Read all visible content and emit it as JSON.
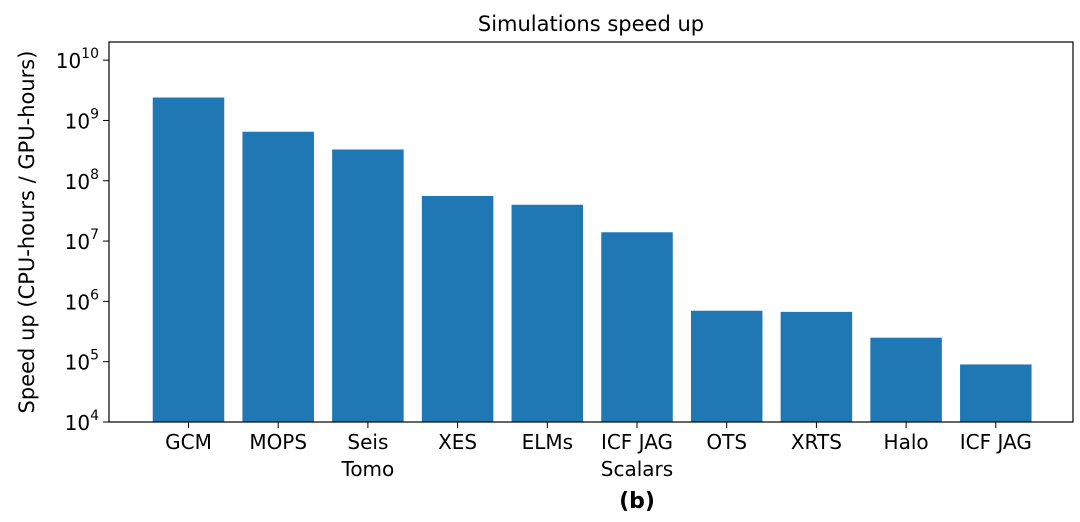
{
  "chart_data": {
    "type": "bar",
    "title": "Simulations speed up",
    "xlabel": "",
    "ylabel": "Speed up (CPU-hours / GPU-hours)",
    "yscale": "log",
    "ylim": [
      10000,
      20000000000
    ],
    "yticks": [
      {
        "value": 10000,
        "base": "10",
        "exp": "4"
      },
      {
        "value": 100000,
        "base": "10",
        "exp": "5"
      },
      {
        "value": 1000000,
        "base": "10",
        "exp": "6"
      },
      {
        "value": 10000000,
        "base": "10",
        "exp": "7"
      },
      {
        "value": 100000000,
        "base": "10",
        "exp": "8"
      },
      {
        "value": 1000000000,
        "base": "10",
        "exp": "9"
      },
      {
        "value": 10000000000,
        "base": "10",
        "exp": "10"
      }
    ],
    "categories": [
      [
        "GCM"
      ],
      [
        "MOPS"
      ],
      [
        "Seis",
        "Tomo"
      ],
      [
        "XES"
      ],
      [
        "ELMs"
      ],
      [
        "ICF JAG",
        "Scalars"
      ],
      [
        "OTS"
      ],
      [
        "XRTS"
      ],
      [
        "Halo"
      ],
      [
        "ICF JAG"
      ]
    ],
    "values": [
      2400000000,
      650000000,
      330000000,
      56000000,
      40000000,
      14000000,
      700000,
      670000,
      250000,
      90000
    ],
    "bar_color": "#1f77b4",
    "grid": false,
    "caption": "(b)"
  }
}
